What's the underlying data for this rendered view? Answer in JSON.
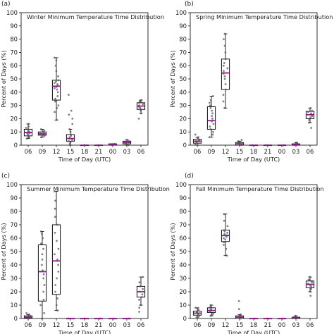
{
  "chart_data": [
    {
      "panel_label": "(a)",
      "type": "box",
      "title": "Winter Minimum Temperature Time Distribution",
      "xlabel": "Time of Day (UTC)",
      "ylabel": "Percent of Days (%)",
      "ylim": [
        0,
        100
      ],
      "yticks": [
        0,
        10,
        20,
        30,
        40,
        50,
        60,
        70,
        80,
        90,
        100
      ],
      "categories": [
        "06",
        "09",
        "12",
        "15",
        "18",
        "21",
        "00",
        "03",
        "06"
      ],
      "boxes": [
        {
          "min": 5,
          "q1": 7,
          "median": 9.5,
          "q3": 12,
          "max": 16,
          "points": [
            5,
            6,
            7,
            8,
            9,
            9,
            10,
            10,
            11,
            12,
            13,
            14,
            16
          ]
        },
        {
          "min": 6,
          "q1": 7.5,
          "median": 8.5,
          "q3": 10,
          "max": 12,
          "points": [
            6,
            7,
            8,
            8,
            9,
            9,
            10,
            11,
            12
          ]
        },
        {
          "min": 19,
          "q1": 34,
          "median": 44.5,
          "q3": 49,
          "max": 66,
          "points": [
            19,
            25,
            28,
            30,
            33,
            35,
            37,
            40,
            42,
            43,
            44,
            45,
            46,
            47,
            48,
            49,
            52,
            56,
            60,
            64,
            66
          ]
        },
        {
          "min": 0,
          "q1": 3,
          "median": 5,
          "q3": 8,
          "max": 12,
          "points": [
            0,
            1,
            2,
            3,
            4,
            5,
            6,
            7,
            8,
            10,
            12,
            16,
            20,
            23,
            26,
            38
          ]
        },
        {
          "min": 0,
          "q1": 0,
          "median": 0,
          "q3": 0,
          "max": 0,
          "points": [
            0
          ]
        },
        {
          "min": 0,
          "q1": 0,
          "median": 0,
          "q3": 0,
          "max": 0,
          "points": [
            0
          ]
        },
        {
          "min": 0,
          "q1": 0,
          "median": 0.5,
          "q3": 1,
          "max": 1,
          "points": [
            0,
            1
          ]
        },
        {
          "min": 0,
          "q1": 1,
          "median": 2,
          "q3": 3,
          "max": 4,
          "points": [
            0,
            1,
            2,
            3,
            4
          ]
        },
        {
          "min": 24,
          "q1": 27,
          "median": 29.5,
          "q3": 32,
          "max": 34,
          "points": [
            20,
            24,
            26,
            27,
            28,
            29,
            30,
            31,
            32,
            33,
            34
          ]
        }
      ]
    },
    {
      "panel_label": "(b)",
      "type": "box",
      "title": "Spring Minimum Temperature Time Distribution",
      "xlabel": "Time of Day (UTC)",
      "ylabel": "Percent of Days (%)",
      "ylim": [
        0,
        100
      ],
      "yticks": [
        0,
        10,
        20,
        30,
        40,
        50,
        60,
        70,
        80,
        90,
        100
      ],
      "categories": [
        "06",
        "09",
        "12",
        "15",
        "18",
        "21",
        "00",
        "03",
        "06"
      ],
      "boxes": [
        {
          "min": 0,
          "q1": 1.5,
          "median": 3,
          "q3": 4.5,
          "max": 6,
          "points": [
            0,
            1,
            2,
            3,
            3,
            4,
            5,
            6,
            8
          ]
        },
        {
          "min": 6,
          "q1": 12,
          "median": 18.5,
          "q3": 29,
          "max": 37,
          "points": [
            6,
            8,
            10,
            12,
            14,
            16,
            18,
            20,
            22,
            24,
            26,
            28,
            30,
            32,
            34,
            37
          ]
        },
        {
          "min": 28,
          "q1": 42,
          "median": 54.5,
          "q3": 65,
          "max": 84,
          "points": [
            28,
            33,
            38,
            42,
            46,
            50,
            52,
            54,
            56,
            58,
            60,
            62,
            65,
            70,
            75,
            80,
            84
          ]
        },
        {
          "min": 0,
          "q1": 0,
          "median": 1,
          "q3": 2,
          "max": 3,
          "points": [
            0,
            1,
            2,
            3,
            4
          ]
        },
        {
          "min": 0,
          "q1": 0,
          "median": 0,
          "q3": 0,
          "max": 0,
          "points": [
            0
          ]
        },
        {
          "min": 0,
          "q1": 0,
          "median": 0,
          "q3": 0,
          "max": 0,
          "points": [
            0
          ]
        },
        {
          "min": 0,
          "q1": 0,
          "median": 0,
          "q3": 0,
          "max": 0,
          "points": [
            0
          ]
        },
        {
          "min": 0,
          "q1": 0,
          "median": 0.5,
          "q3": 1,
          "max": 2,
          "points": [
            0,
            1,
            2
          ]
        },
        {
          "min": 17,
          "q1": 20,
          "median": 23,
          "q3": 25.5,
          "max": 28,
          "points": [
            13,
            17,
            19,
            21,
            22,
            23,
            24,
            25,
            26,
            28
          ]
        }
      ]
    },
    {
      "panel_label": "(c)",
      "type": "box",
      "title": "Summer Minimum Temperature Time Distribution",
      "xlabel": "Time of Day (UTC)",
      "ylabel": "Percent of Days (%)",
      "ylim": [
        0,
        100
      ],
      "yticks": [
        0,
        10,
        20,
        30,
        40,
        50,
        60,
        70,
        80,
        90,
        100
      ],
      "categories": [
        "06",
        "09",
        "12",
        "15",
        "18",
        "21",
        "00",
        "03",
        "06"
      ],
      "boxes": [
        {
          "min": 0,
          "q1": 0.5,
          "median": 1,
          "q3": 2,
          "max": 3,
          "points": [
            0,
            1,
            2,
            3,
            4
          ]
        },
        {
          "min": 0,
          "q1": 13,
          "median": 35,
          "q3": 55,
          "max": 65,
          "points": [
            0,
            4,
            10,
            14,
            20,
            25,
            30,
            33,
            36,
            40,
            44,
            48,
            52,
            56,
            60,
            63,
            65
          ]
        },
        {
          "min": 6,
          "q1": 18,
          "median": 43,
          "q3": 70,
          "max": 95,
          "points": [
            6,
            10,
            15,
            20,
            25,
            30,
            35,
            40,
            44,
            48,
            52,
            58,
            64,
            70,
            76,
            82,
            88,
            95
          ]
        },
        {
          "min": 0,
          "q1": 0,
          "median": 0,
          "q3": 0,
          "max": 0,
          "points": [
            0
          ]
        },
        {
          "min": 0,
          "q1": 0,
          "median": 0,
          "q3": 0,
          "max": 0,
          "points": [
            0
          ]
        },
        {
          "min": 0,
          "q1": 0,
          "median": 0,
          "q3": 0,
          "max": 0,
          "points": [
            0
          ]
        },
        {
          "min": 0,
          "q1": 0,
          "median": 0,
          "q3": 0,
          "max": 0,
          "points": [
            0
          ]
        },
        {
          "min": 0,
          "q1": 0,
          "median": 0,
          "q3": 0,
          "max": 0,
          "points": [
            0
          ]
        },
        {
          "min": 10,
          "q1": 16,
          "median": 20,
          "q3": 24,
          "max": 31,
          "points": [
            5,
            8,
            10,
            14,
            16,
            18,
            20,
            22,
            24,
            27,
            31
          ]
        }
      ]
    },
    {
      "panel_label": "(d)",
      "type": "box",
      "title": "Fall Minimum Temperature Time Distribution",
      "xlabel": "Time of Day (UTC)",
      "ylabel": "Percent of Days (%)",
      "ylim": [
        0,
        100
      ],
      "yticks": [
        0,
        10,
        20,
        30,
        40,
        50,
        60,
        70,
        80,
        90,
        100
      ],
      "categories": [
        "06",
        "09",
        "12",
        "15",
        "18",
        "21",
        "00",
        "03",
        "06"
      ],
      "boxes": [
        {
          "min": 1,
          "q1": 2.5,
          "median": 4,
          "q3": 5.5,
          "max": 8,
          "points": [
            1,
            2,
            3,
            4,
            5,
            6,
            7,
            8
          ]
        },
        {
          "min": 2,
          "q1": 4.5,
          "median": 6,
          "q3": 8,
          "max": 10,
          "points": [
            2,
            3,
            4,
            5,
            6,
            7,
            8,
            9,
            10
          ]
        },
        {
          "min": 47,
          "q1": 57.5,
          "median": 62,
          "q3": 66,
          "max": 78,
          "points": [
            47,
            52,
            55,
            57,
            59,
            60,
            61,
            62,
            63,
            64,
            65,
            66,
            69,
            73,
            78
          ]
        },
        {
          "min": 0,
          "q1": 0,
          "median": 1,
          "q3": 2,
          "max": 3,
          "points": [
            0,
            1,
            2,
            3,
            7,
            13
          ]
        },
        {
          "min": 0,
          "q1": 0,
          "median": 0,
          "q3": 0,
          "max": 0,
          "points": [
            0
          ]
        },
        {
          "min": 0,
          "q1": 0,
          "median": 0,
          "q3": 0,
          "max": 0,
          "points": [
            0
          ]
        },
        {
          "min": 0,
          "q1": 0,
          "median": 0,
          "q3": 0,
          "max": 0,
          "points": [
            0
          ]
        },
        {
          "min": 0,
          "q1": 0,
          "median": 0.5,
          "q3": 1,
          "max": 2,
          "points": [
            0,
            1,
            2
          ]
        },
        {
          "min": 20,
          "q1": 23,
          "median": 25.5,
          "q3": 28,
          "max": 31,
          "points": [
            17,
            20,
            22,
            24,
            25,
            26,
            27,
            28,
            29,
            31
          ]
        }
      ]
    }
  ],
  "colors": {
    "median": "#8b1a8b",
    "box": "#111111",
    "points": "#555555"
  }
}
